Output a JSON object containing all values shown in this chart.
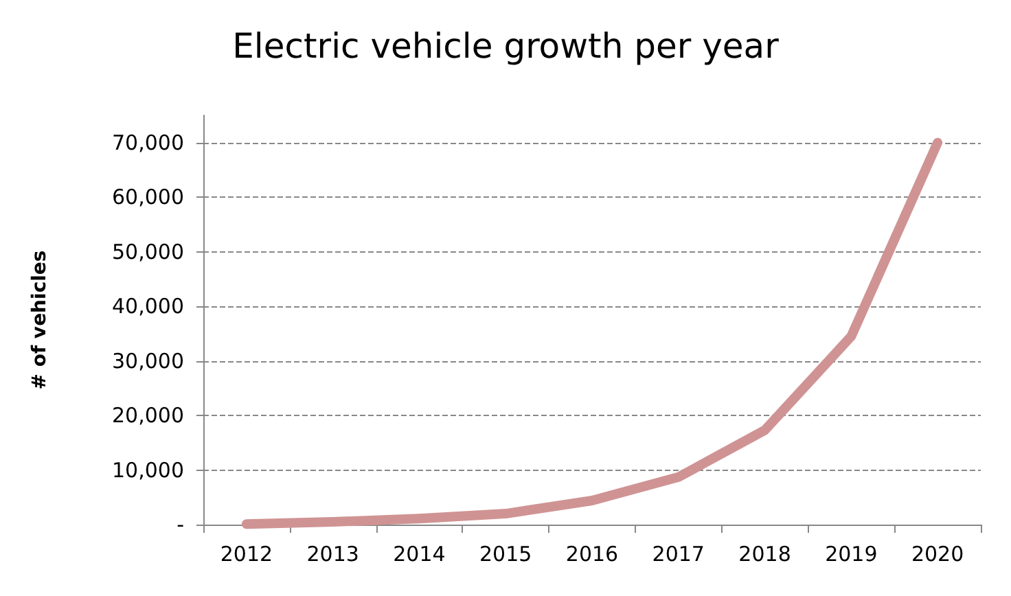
{
  "chart_data": {
    "type": "line",
    "title": "Electric vehicle growth per year",
    "ylabel": "# of vehicles",
    "categories": [
      "2012",
      "2013",
      "2014",
      "2015",
      "2016",
      "2017",
      "2018",
      "2019",
      "2020"
    ],
    "series": [
      {
        "color": "#d09393",
        "values": [
          100,
          500,
          1100,
          2000,
          4400,
          8700,
          17300,
          34500,
          70000
        ]
      }
    ],
    "ylim": [
      0,
      75000
    ],
    "yticks": [
      {
        "value": 0,
        "label": "-"
      },
      {
        "value": 10000,
        "label": "10,000"
      },
      {
        "value": 20000,
        "label": "20,000"
      },
      {
        "value": 30000,
        "label": "30,000"
      },
      {
        "value": 40000,
        "label": "40,000"
      },
      {
        "value": 50000,
        "label": "50,000"
      },
      {
        "value": 60000,
        "label": "60,000"
      },
      {
        "value": 70000,
        "label": "70,000"
      }
    ],
    "grid": "y",
    "line_style": "solid"
  }
}
